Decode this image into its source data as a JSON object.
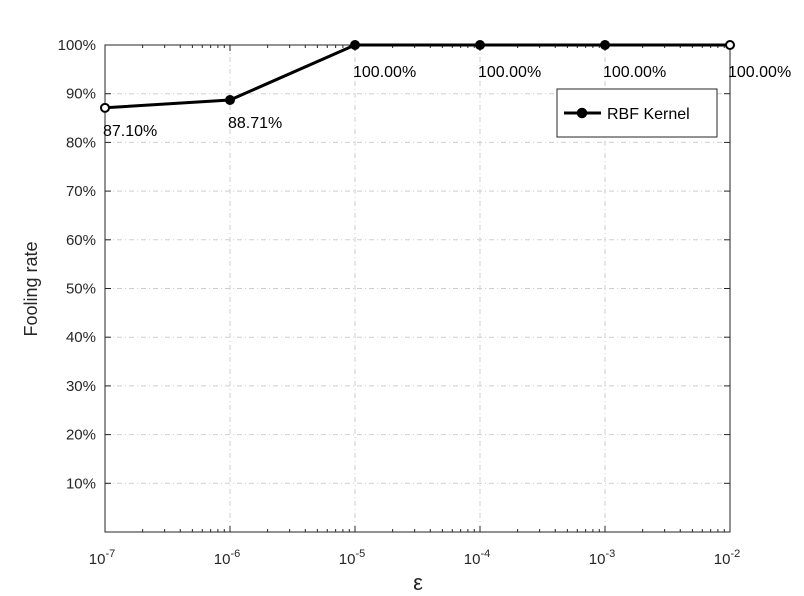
{
  "chart_data": {
    "type": "line",
    "title": "",
    "xlabel": "ε",
    "ylabel": "Fooling rate",
    "x_scale": "log",
    "xlim": [
      1e-07,
      0.01
    ],
    "ylim": [
      0,
      100
    ],
    "x_ticks": [
      {
        "base": "10",
        "exp": "-7"
      },
      {
        "base": "10",
        "exp": "-6"
      },
      {
        "base": "10",
        "exp": "-5"
      },
      {
        "base": "10",
        "exp": "-4"
      },
      {
        "base": "10",
        "exp": "-3"
      },
      {
        "base": "10",
        "exp": "-2"
      }
    ],
    "y_ticks": [
      "10%",
      "20%",
      "30%",
      "40%",
      "50%",
      "60%",
      "70%",
      "80%",
      "90%",
      "100%"
    ],
    "grid": true,
    "legend_position": "top-right",
    "series": [
      {
        "name": "RBF Kernel",
        "color": "#000000",
        "x": [
          1e-07,
          1e-06,
          1e-05,
          0.0001,
          0.001,
          0.01
        ],
        "y": [
          87.1,
          88.71,
          100.0,
          100.0,
          100.0,
          100.0
        ],
        "labels": [
          "87.10%",
          "88.71%",
          "100.00%",
          "100.00%",
          "100.00%",
          "100.00%"
        ]
      }
    ]
  }
}
